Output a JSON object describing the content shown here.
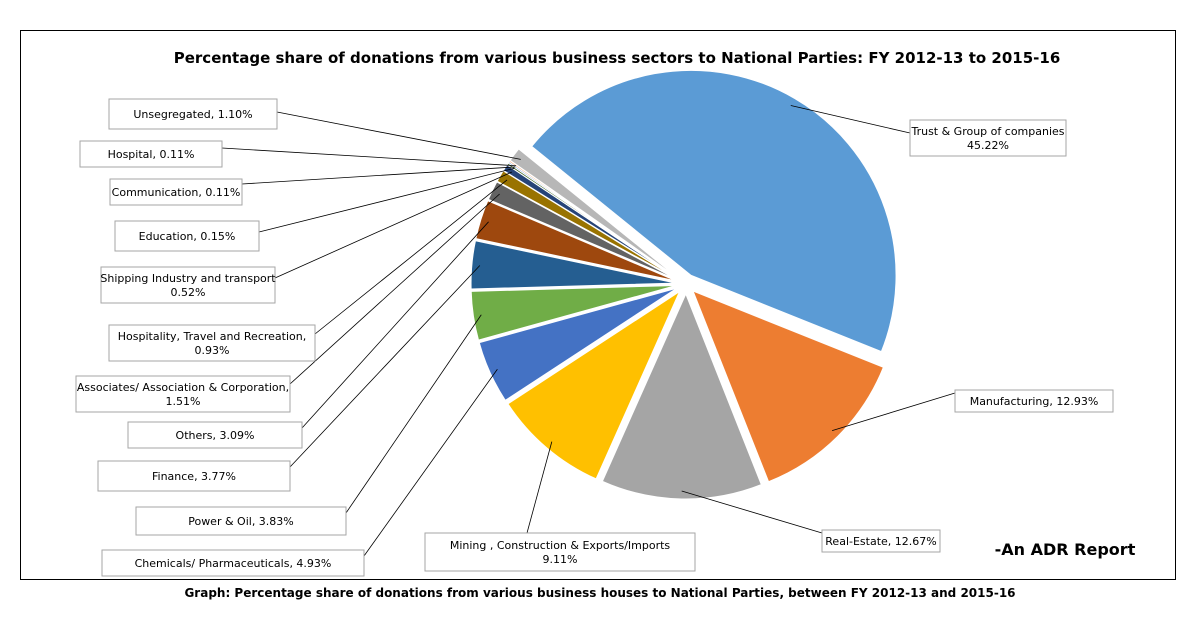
{
  "chart_data": {
    "type": "pie",
    "title": "Percentage share of donations from various business sectors to National Parties: FY 2012-13 to 2015-16",
    "slices": [
      {
        "name": "Trust & Group of companies",
        "value": 45.22,
        "label_lines": [
          "Trust & Group of companies",
          "45.22%"
        ],
        "color": "#5b9bd5"
      },
      {
        "name": "Manufacturing",
        "value": 12.93,
        "label_lines": [
          "Manufacturing, 12.93%"
        ],
        "color": "#ed7d31"
      },
      {
        "name": "Real-Estate",
        "value": 12.67,
        "label_lines": [
          "Real-Estate, 12.67%"
        ],
        "color": "#a5a5a5"
      },
      {
        "name": "Mining , Construction & Exports/Imports",
        "value": 9.11,
        "label_lines": [
          "Mining , Construction & Exports/Imports",
          "9.11%"
        ],
        "color": "#ffc000"
      },
      {
        "name": "Chemicals/ Pharmaceuticals",
        "value": 4.93,
        "label_lines": [
          "Chemicals/ Pharmaceuticals, 4.93%"
        ],
        "color": "#4472c4"
      },
      {
        "name": "Power & Oil",
        "value": 3.83,
        "label_lines": [
          "Power & Oil, 3.83%"
        ],
        "color": "#70ad47"
      },
      {
        "name": "Finance",
        "value": 3.77,
        "label_lines": [
          "Finance, 3.77%"
        ],
        "color": "#255e91"
      },
      {
        "name": "Others",
        "value": 3.09,
        "label_lines": [
          "Others, 3.09%"
        ],
        "color": "#9e480e"
      },
      {
        "name": "Associates/ Association & Corporation",
        "value": 1.51,
        "label_lines": [
          "Associates/ Association & Corporation,",
          "1.51%"
        ],
        "color": "#636363"
      },
      {
        "name": "Hospitality, Travel and Recreation",
        "value": 0.93,
        "label_lines": [
          "Hospitality, Travel and Recreation,",
          "0.93%"
        ],
        "color": "#997300"
      },
      {
        "name": "Shipping Industry and transport",
        "value": 0.52,
        "label_lines": [
          "Shipping Industry and transport",
          "0.52%"
        ],
        "color": "#264478"
      },
      {
        "name": "Education",
        "value": 0.15,
        "label_lines": [
          "Education, 0.15%"
        ],
        "color": "#43682b"
      },
      {
        "name": "Communication",
        "value": 0.11,
        "label_lines": [
          "Communication, 0.11%"
        ],
        "color": "#698ed0"
      },
      {
        "name": "Hospital",
        "value": 0.11,
        "label_lines": [
          "Hospital, 0.11%"
        ],
        "color": "#f1975a"
      },
      {
        "name": "Unsegregated",
        "value": 1.1,
        "label_lines": [
          "Unsegregated, 1.10%"
        ],
        "color": "#b7b7b7"
      }
    ]
  },
  "annotation": "-An ADR Report",
  "caption": "Graph: Percentage share of donations from various business houses to National Parties, between FY 2012-13 and 2015-16"
}
